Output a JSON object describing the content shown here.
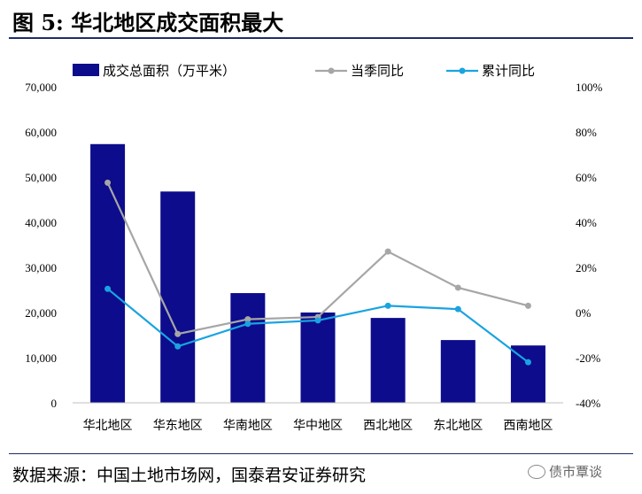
{
  "figure": {
    "title": "图 5:  华北地区成交面积最大",
    "source": "数据来源：中国土地市场网，国泰君安证券研究",
    "watermark": "债市覃谈"
  },
  "colors": {
    "bar": "#0c0c8c",
    "current_quarter_yoy": "#a6a6a6",
    "cumulative_yoy": "#1aa3e0",
    "rule": "#1e2c6b"
  },
  "chart_data": {
    "type": "bar",
    "categories": [
      "华北地区",
      "华东地区",
      "华南地区",
      "华中地区",
      "西北地区",
      "东北地区",
      "西南地区"
    ],
    "series": [
      {
        "name": "成交总面积（万平米）",
        "type": "bar",
        "axis": "left",
        "values": [
          57300,
          46800,
          24300,
          20000,
          18800,
          13900,
          12700
        ]
      },
      {
        "name": "当季同比",
        "type": "line",
        "axis": "right",
        "unit": "%",
        "values": [
          57.5,
          -9.5,
          -3,
          -2,
          27,
          11,
          3
        ]
      },
      {
        "name": "累计同比",
        "type": "line",
        "axis": "right",
        "unit": "%",
        "values": [
          10.5,
          -15,
          -5,
          -3.5,
          3,
          1.5,
          -22
        ]
      }
    ],
    "y_left": {
      "lim": [
        0,
        70000
      ],
      "ticks": [
        0,
        10000,
        20000,
        30000,
        40000,
        50000,
        60000,
        70000
      ],
      "tick_labels": [
        "0",
        "10,000",
        "20,000",
        "30,000",
        "40,000",
        "50,000",
        "60,000",
        "70,000"
      ]
    },
    "y_right": {
      "lim": [
        -40,
        100
      ],
      "ticks": [
        -40,
        -20,
        0,
        20,
        40,
        60,
        80,
        100
      ],
      "tick_labels": [
        "-40%",
        "-20%",
        "0%",
        "20%",
        "40%",
        "60%",
        "80%",
        "100%"
      ]
    },
    "grid": false,
    "legend": "top"
  }
}
